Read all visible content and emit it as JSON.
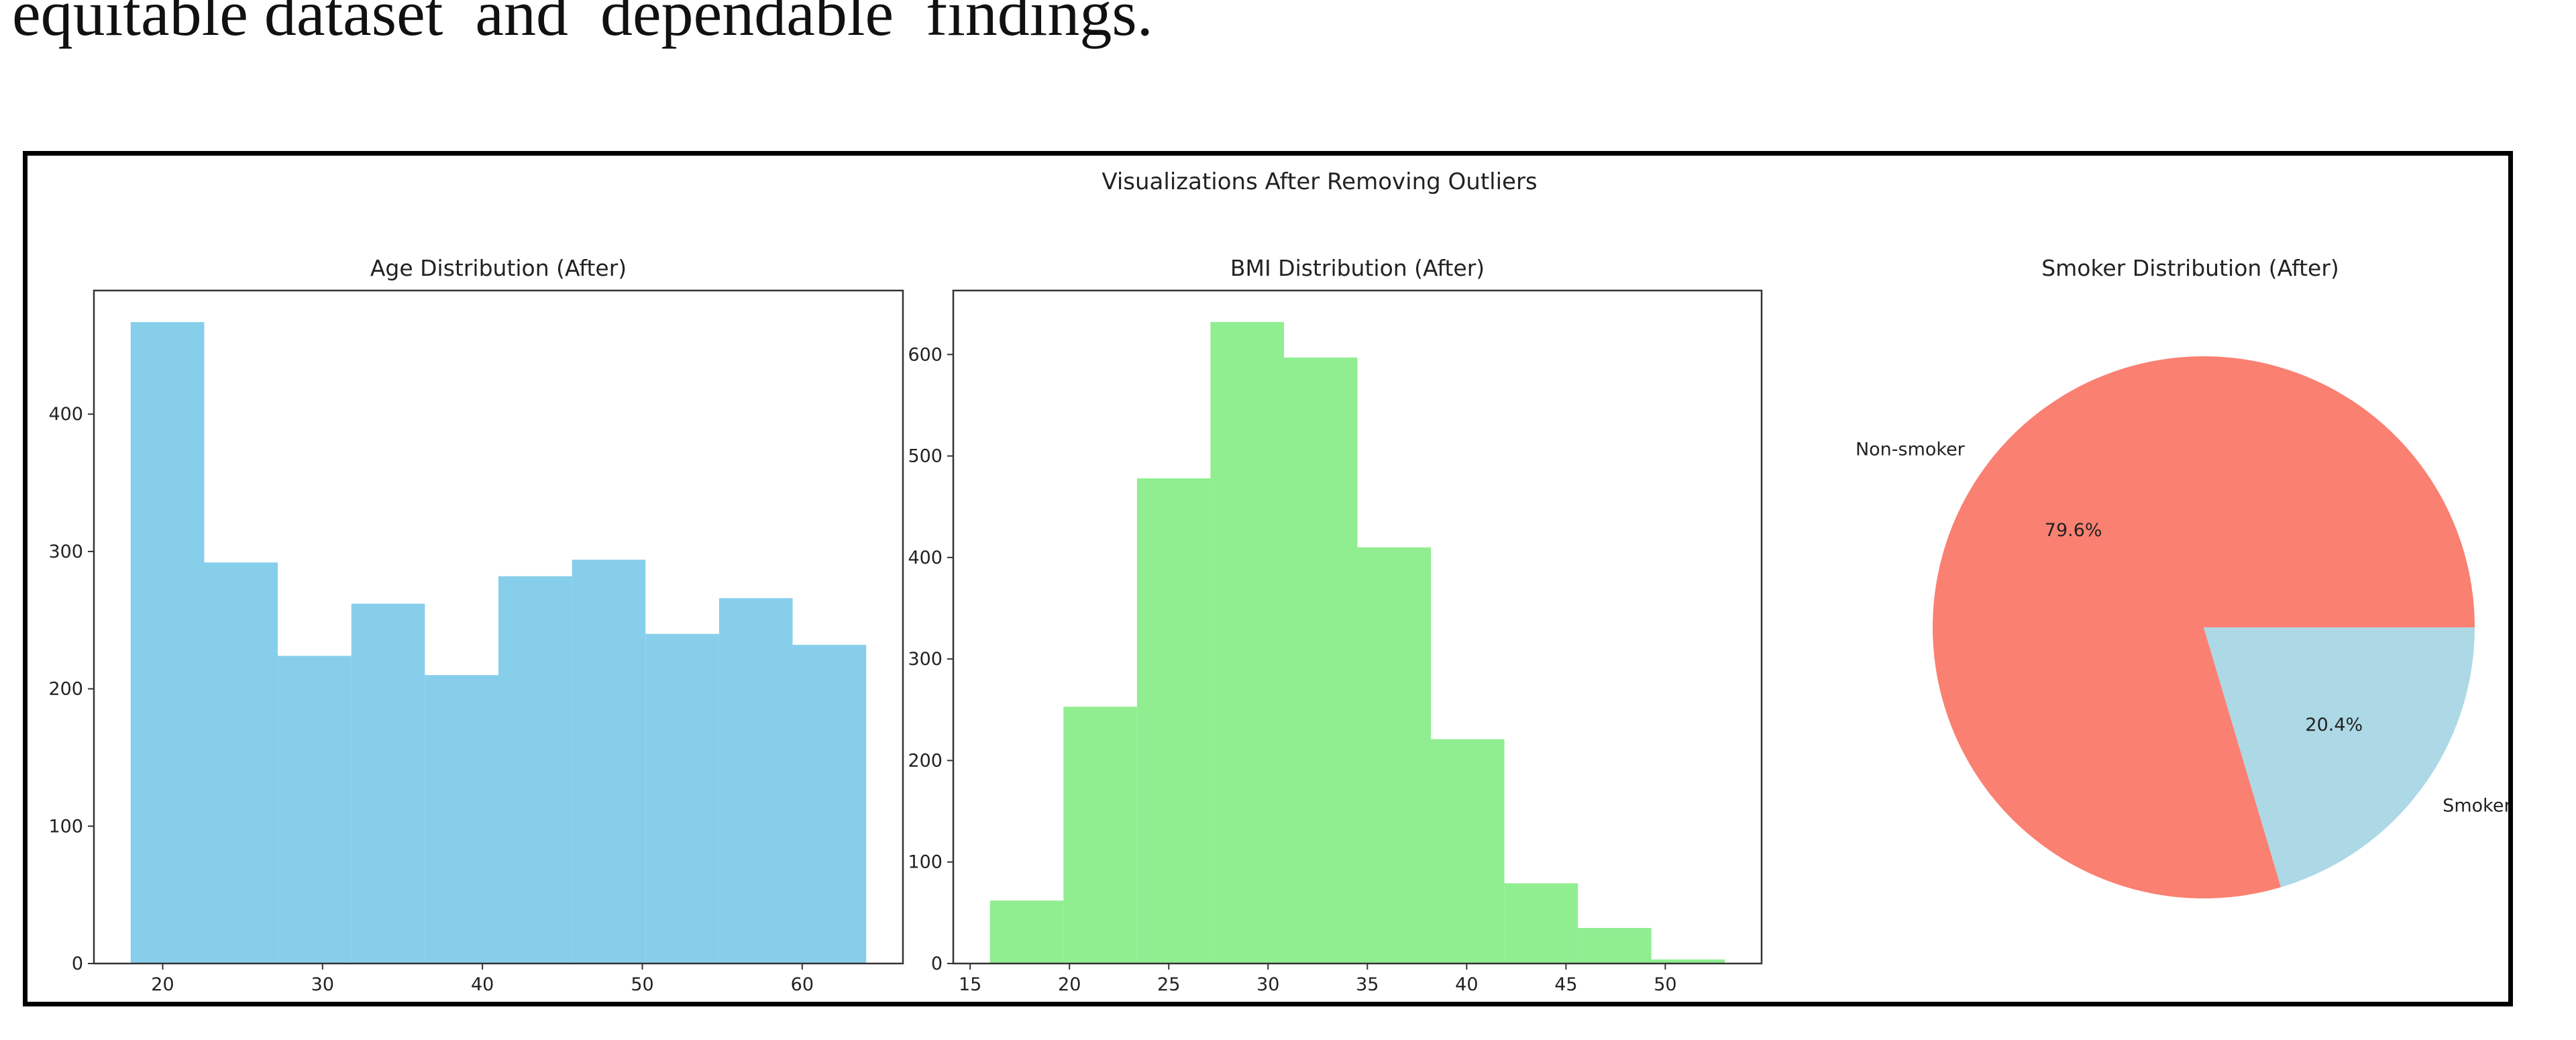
{
  "top_text": "equitable dataset  and  dependable  findings.",
  "suptitle": "Visualizations After Removing Outliers",
  "colors": {
    "age_bar": "#87CEEB",
    "bmi_bar": "#90EE90",
    "non_smoker": "#FA8072",
    "smoker": "#ADD8E6"
  },
  "chart_data": [
    {
      "type": "bar",
      "title": "Age Distribution (After)",
      "xlabel": "",
      "ylabel": "",
      "bins": [
        {
          "x0": 18.0,
          "x1": 22.6,
          "value": 467
        },
        {
          "x0": 22.6,
          "x1": 27.2,
          "value": 292
        },
        {
          "x0": 27.2,
          "x1": 31.8,
          "value": 224
        },
        {
          "x0": 31.8,
          "x1": 36.4,
          "value": 262
        },
        {
          "x0": 36.4,
          "x1": 41.0,
          "value": 210
        },
        {
          "x0": 41.0,
          "x1": 45.6,
          "value": 282
        },
        {
          "x0": 45.6,
          "x1": 50.2,
          "value": 294
        },
        {
          "x0": 50.2,
          "x1": 54.8,
          "value": 240
        },
        {
          "x0": 54.8,
          "x1": 59.4,
          "value": 266
        },
        {
          "x0": 59.4,
          "x1": 64.0,
          "value": 232
        }
      ],
      "xlim": [
        15.7,
        66.3
      ],
      "ylim": [
        0,
        490
      ],
      "xticks": [
        20,
        30,
        40,
        50,
        60
      ],
      "yticks": [
        0,
        100,
        200,
        300,
        400
      ],
      "color": "#87CEEB"
    },
    {
      "type": "bar",
      "title": "BMI Distribution (After)",
      "xlabel": "",
      "ylabel": "",
      "bins": [
        {
          "x0": 16.0,
          "x1": 19.7,
          "value": 62
        },
        {
          "x0": 19.7,
          "x1": 23.4,
          "value": 253
        },
        {
          "x0": 23.4,
          "x1": 27.1,
          "value": 478
        },
        {
          "x0": 27.1,
          "x1": 30.8,
          "value": 632
        },
        {
          "x0": 30.8,
          "x1": 34.5,
          "value": 597
        },
        {
          "x0": 34.5,
          "x1": 38.2,
          "value": 410
        },
        {
          "x0": 38.2,
          "x1": 41.9,
          "value": 221
        },
        {
          "x0": 41.9,
          "x1": 45.6,
          "value": 79
        },
        {
          "x0": 45.6,
          "x1": 49.3,
          "value": 35
        },
        {
          "x0": 49.3,
          "x1": 53.0,
          "value": 4
        }
      ],
      "xlim": [
        14.15,
        54.85
      ],
      "ylim": [
        0,
        663
      ],
      "xticks": [
        15,
        20,
        25,
        30,
        35,
        40,
        45,
        50
      ],
      "yticks": [
        0,
        100,
        200,
        300,
        400,
        500,
        600
      ],
      "color": "#90EE90"
    },
    {
      "type": "pie",
      "title": "Smoker Distribution (After)",
      "slices": [
        {
          "label": "Non-smoker",
          "value": 79.6,
          "pct_label": "79.6%",
          "color": "#FA8072"
        },
        {
          "label": "Smoker",
          "value": 20.4,
          "pct_label": "20.4%",
          "color": "#ADD8E6"
        }
      ]
    }
  ]
}
